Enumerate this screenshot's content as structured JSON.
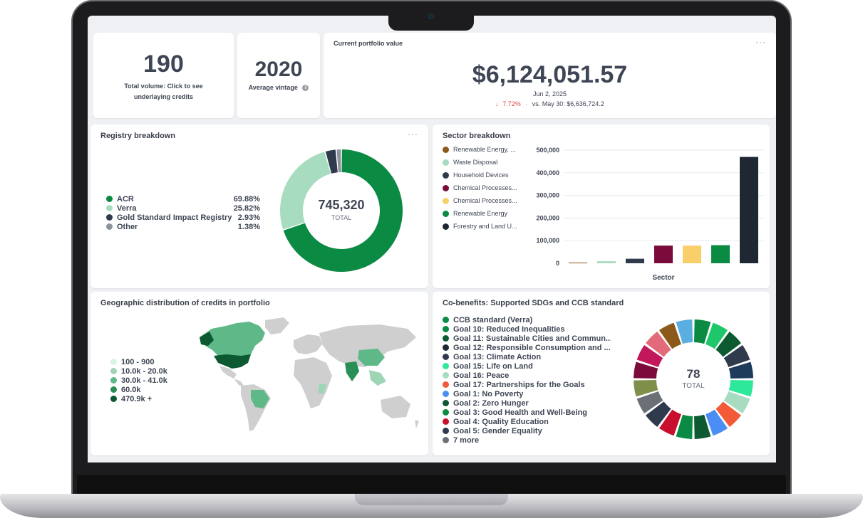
{
  "kpis": {
    "total_volume": {
      "value": "190",
      "label": "Total volume: Click to see underlaying credits"
    },
    "average_vintage": {
      "value": "2020",
      "label": "Average vintage",
      "icon": "info-icon"
    },
    "portfolio": {
      "title": "Current portfolio value",
      "value": "$6,124,051.57",
      "date": "Jun 2, 2025",
      "change": "7.72%",
      "change_arrow": "↓",
      "separator": "·",
      "comparison": "vs. May 30: $6,636,724.2",
      "menu": "···"
    }
  },
  "registry": {
    "title": "Registry breakdown",
    "menu": "···",
    "total_value": "745,320",
    "total_label": "TOTAL",
    "items": [
      {
        "label": "ACR",
        "pct": "69.88%",
        "color": "#0a8a43"
      },
      {
        "label": "Verra",
        "pct": "25.82%",
        "color": "#a8dcc0"
      },
      {
        "label": "Gold Standard Impact Registry",
        "pct": "2.93%",
        "color": "#2f3a4d"
      },
      {
        "label": "Other",
        "pct": "1.38%",
        "color": "#8e929b"
      }
    ]
  },
  "sector": {
    "title": "Sector breakdown",
    "legend": [
      {
        "label": "Renewable Energy, ...",
        "color": "#8b5a1a"
      },
      {
        "label": "Waste Disposal",
        "color": "#a8dcc0"
      },
      {
        "label": "Household Devices",
        "color": "#2f3a4d"
      },
      {
        "label": "Chemical Processes...",
        "color": "#7a0b3a"
      },
      {
        "label": "Chemical Processes...",
        "color": "#f9cf6a"
      },
      {
        "label": "Renewable Energy",
        "color": "#0a8a43"
      },
      {
        "label": "Forestry and Land U...",
        "color": "#1f2733"
      }
    ]
  },
  "chart_data": {
    "type": "bar",
    "categories": [
      "Renewable Energy, ...",
      "Waste Disposal",
      "Household Devices",
      "Chemical Processes...",
      "Chemical Processes...",
      "Renewable Energy",
      "Forestry and Land U..."
    ],
    "values": [
      3000,
      9000,
      20000,
      78000,
      78000,
      80000,
      470000
    ],
    "colors": [
      "#8b5a1a",
      "#a8dcc0",
      "#2f3a4d",
      "#7a0b3a",
      "#f9cf6a",
      "#0a8a43",
      "#1f2733"
    ],
    "xlabel": "Sector",
    "ylabel": "",
    "ylim": [
      0,
      500000
    ],
    "yticks": [
      "0",
      "100,000",
      "200,000",
      "300,000",
      "400,000",
      "500,000"
    ],
    "grid": true
  },
  "geo": {
    "title": "Geographic distribution of credits in portfolio",
    "legend": [
      {
        "label": "100 - 900",
        "color": "#d9f3e6"
      },
      {
        "label": "10.0k - 20.0k",
        "color": "#9ed5b5"
      },
      {
        "label": "30.0k - 41.0k",
        "color": "#5fb887"
      },
      {
        "label": "60.0k",
        "color": "#2a8f57"
      },
      {
        "label": "470.9k +",
        "color": "#0b5a32"
      }
    ]
  },
  "cobenefits": {
    "title": "Co-benefits: Supported SDGs and CCB standard",
    "total_value": "78",
    "total_label": "TOTAL",
    "items": [
      {
        "label": "CCB standard (Verra)",
        "color": "#0a8a43"
      },
      {
        "label": "Goal 10: Reduced Inequalities",
        "color": "#0a8a43"
      },
      {
        "label": "Goal 11: Sustainable Cities and Commun...",
        "color": "#0b5a32"
      },
      {
        "label": "Goal 12: Responsible Consumption and ...",
        "color": "#1f2733"
      },
      {
        "label": "Goal 13: Climate Action",
        "color": "#2f3a4d"
      },
      {
        "label": "Goal 15: Life on Land",
        "color": "#2ee89a"
      },
      {
        "label": "Goal 16: Peace",
        "color": "#a8dcc0"
      },
      {
        "label": "Goal 17: Partnerships for the Goals",
        "color": "#f25a38"
      },
      {
        "label": "Goal 1: No Poverty",
        "color": "#4a8ef5"
      },
      {
        "label": "Goal 2: Zero Hunger",
        "color": "#0b5a32"
      },
      {
        "label": "Goal 3: Good Health and Well-Being",
        "color": "#0a8a43"
      },
      {
        "label": "Goal 4: Quality Education",
        "color": "#c8102e"
      },
      {
        "label": "Goal 5: Gender Equality",
        "color": "#2f3a4d"
      },
      {
        "label": "7 more",
        "color": "#6b6f76"
      }
    ],
    "ring_colors": [
      "#0a8a43",
      "#1ec86a",
      "#0b5a32",
      "#2f3a4d",
      "#1f3b5c",
      "#2ee89a",
      "#a8dcc0",
      "#f25a38",
      "#4a8ef5",
      "#0b5a32",
      "#0a8a43",
      "#c8102e",
      "#2f3a4d",
      "#6b6f76",
      "#7f8f4a",
      "#7a0b3a",
      "#c2185b",
      "#e26a7a",
      "#8b5a1a",
      "#5aaee0"
    ]
  }
}
